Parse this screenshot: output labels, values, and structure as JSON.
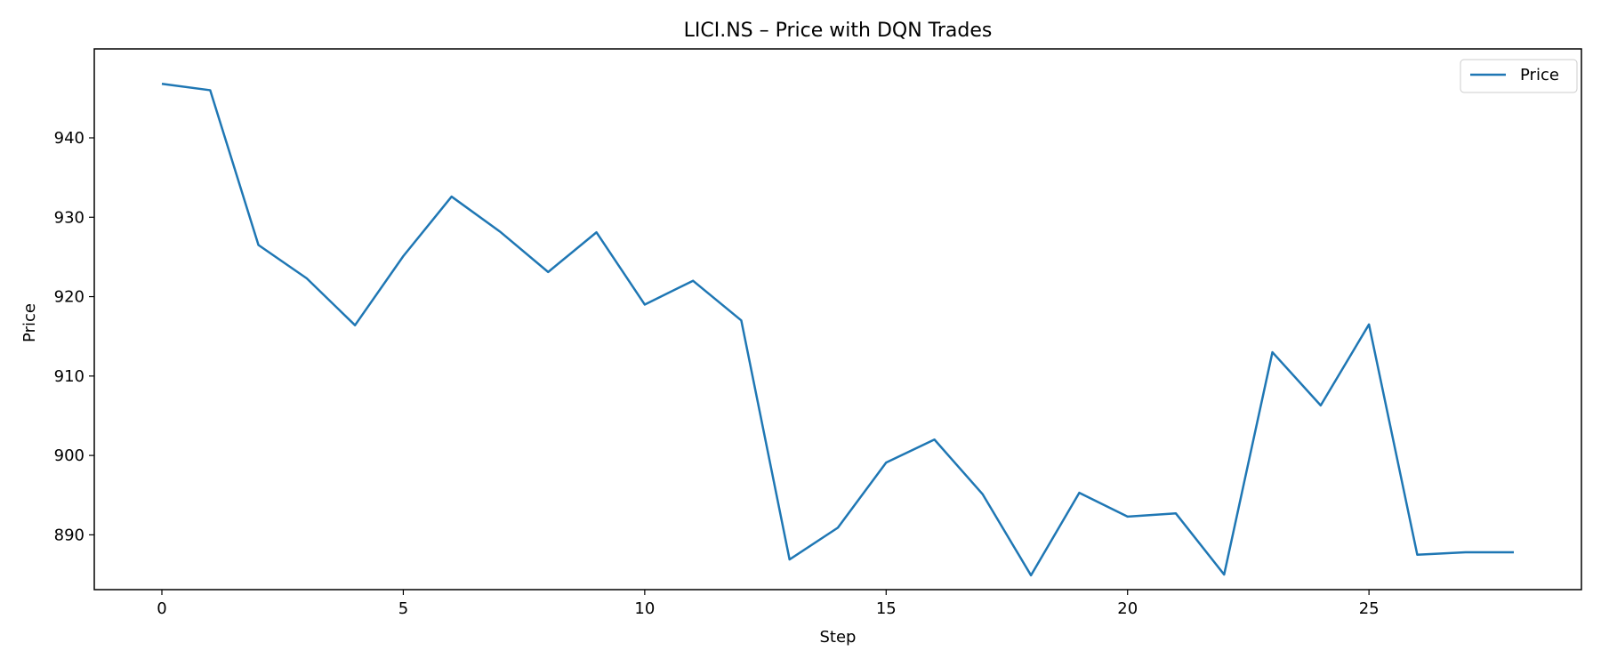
{
  "chart_data": {
    "type": "line",
    "title": "LICI.NS – Price with DQN Trades",
    "xlabel": "Step",
    "ylabel": "Price",
    "xlim": [
      -1.4,
      29.4
    ],
    "ylim": [
      883.1,
      951.2
    ],
    "xticks": [
      0,
      5,
      10,
      15,
      20,
      25
    ],
    "yticks": [
      890,
      900,
      910,
      920,
      930,
      940
    ],
    "grid": false,
    "legend_position": "top-right",
    "series": [
      {
        "name": "Price",
        "color": "#1f77b4",
        "x": [
          0,
          1,
          2,
          3,
          4,
          5,
          6,
          7,
          8,
          9,
          10,
          11,
          12,
          13,
          14,
          15,
          16,
          17,
          18,
          19,
          20,
          21,
          22,
          23,
          24,
          25,
          26,
          27,
          28
        ],
        "y": [
          946.8,
          946.0,
          926.5,
          922.3,
          916.4,
          925.1,
          932.6,
          928.2,
          923.1,
          928.1,
          919.0,
          922.0,
          917.0,
          886.9,
          890.9,
          899.1,
          902.0,
          895.1,
          884.9,
          895.3,
          892.3,
          892.7,
          885.0,
          913.0,
          906.3,
          916.5,
          887.5,
          887.8,
          887.8
        ]
      }
    ]
  }
}
